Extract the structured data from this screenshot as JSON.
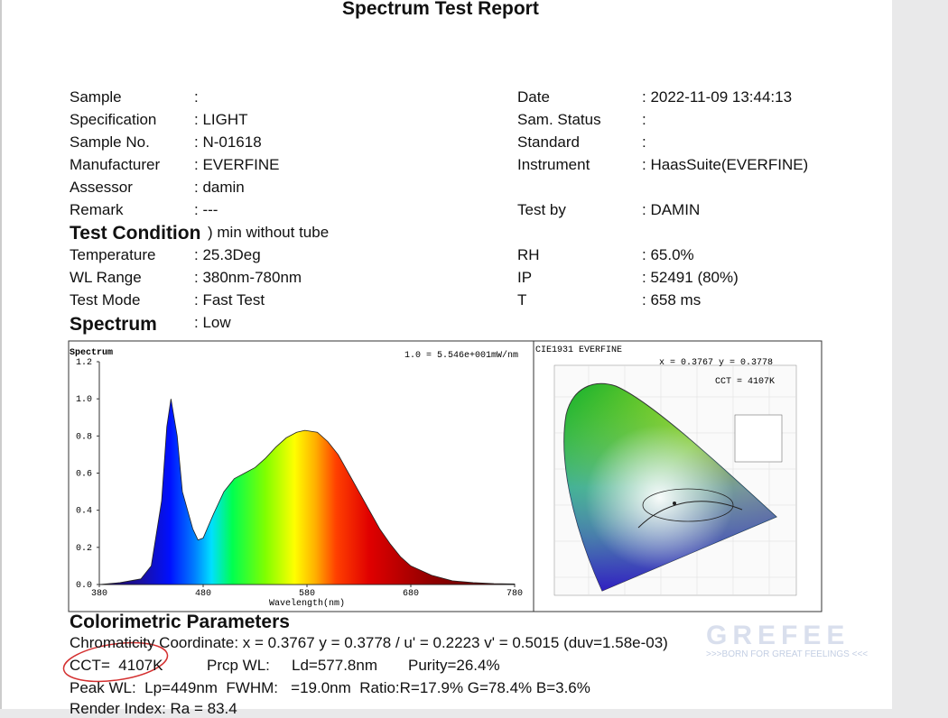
{
  "header": {
    "title": "Spectrum Test Report"
  },
  "info": {
    "left": [
      {
        "label": "Sample",
        "value": ":"
      },
      {
        "label": "Specification",
        "value": ": LIGHT"
      },
      {
        "label": "Sample No.",
        "value": ": N-01618"
      },
      {
        "label": "Manufacturer",
        "value": ": EVERFINE"
      },
      {
        "label": "Assessor",
        "value": ": damin"
      },
      {
        "label": "Remark",
        "value": ": ---"
      }
    ],
    "right": [
      {
        "label": "Date",
        "value": ": 2022-11-09 13:44:13"
      },
      {
        "label": "Sam. Status",
        "value": ":"
      },
      {
        "label": "Standard",
        "value": ":"
      },
      {
        "label": "Instrument",
        "value": ": HaasSuite(EVERFINE)"
      },
      {
        "label": "Test by",
        "value": ": DAMIN"
      }
    ]
  },
  "condition": {
    "heading": "Test Condition",
    "note": ") min without tube",
    "left": [
      {
        "label": "Temperature",
        "value": ": 25.3Deg"
      },
      {
        "label": "WL Range",
        "value": ": 380nm-780nm"
      },
      {
        "label": "Test Mode",
        "value": ": Fast Test"
      }
    ],
    "right": [
      {
        "label": "RH",
        "value": ": 65.0%"
      },
      {
        "label": "IP",
        "value": ": 52491 (80%)"
      },
      {
        "label": "T",
        "value": ": 658 ms"
      }
    ]
  },
  "spectrum_section": {
    "heading": "Spectrum",
    "value": ": Low"
  },
  "chart_data": {
    "type": "area",
    "title": "Spectrum",
    "annotation": "1.0 = 5.546e+001mW/nm",
    "x_label": "Wavelength(nm)",
    "x": [
      380,
      400,
      420,
      430,
      440,
      445,
      449,
      455,
      460,
      470,
      475,
      480,
      490,
      500,
      510,
      520,
      530,
      540,
      550,
      560,
      570,
      578,
      590,
      600,
      610,
      620,
      630,
      640,
      650,
      660,
      670,
      680,
      700,
      720,
      740,
      760,
      780
    ],
    "values": [
      0.0,
      0.01,
      0.03,
      0.1,
      0.45,
      0.85,
      1.0,
      0.8,
      0.5,
      0.3,
      0.24,
      0.25,
      0.38,
      0.5,
      0.57,
      0.6,
      0.63,
      0.68,
      0.74,
      0.79,
      0.82,
      0.83,
      0.82,
      0.77,
      0.7,
      0.6,
      0.5,
      0.4,
      0.3,
      0.22,
      0.15,
      0.1,
      0.05,
      0.02,
      0.01,
      0.005,
      0.003
    ],
    "xlim": [
      380,
      780
    ],
    "xticks": [
      380,
      480,
      580,
      680,
      780
    ],
    "ylim": [
      0,
      1.2
    ],
    "yticks": [
      {
        "value": 0,
        "label": "0.0"
      },
      0.2,
      0.4,
      0.6,
      0.8,
      {
        "value": 1,
        "label": "1.0"
      },
      1.2
    ]
  },
  "cie": {
    "title": "CIE1931  EVERFINE",
    "coords": "x = 0.3767 y = 0.3778",
    "cct": "CCT = 4107K"
  },
  "colorimetric": {
    "heading": "Colorimetric Parameters",
    "line1": "Chromaticity Coordinate: x = 0.3767 y = 0.3778 / u' = 0.2223 v' = 0.5015 (duv=1.58e-03)",
    "line2": [
      "CCT=  4107K",
      "Prcp WL:",
      "Ld=577.8nm",
      "Purity=26.4%"
    ],
    "line3": "Peak WL:  Lp=449nm  FWHM:   =19.0nm  Ratio:R=17.9% G=78.4% B=3.6%",
    "line4": "Render Index: Ra = 83.4"
  },
  "watermark": {
    "brand": "GREFEE",
    "tagline": ">>>BORN FOR GREAT FEELINGS <<<"
  }
}
